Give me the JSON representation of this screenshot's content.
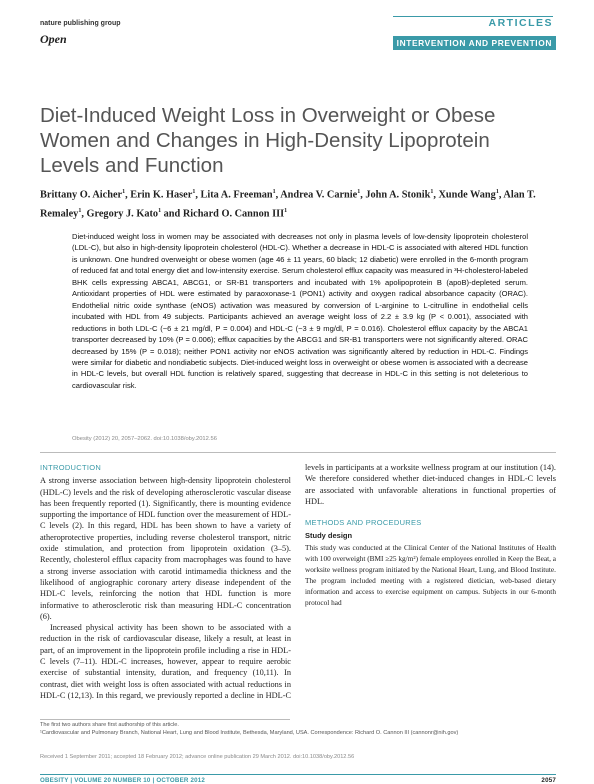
{
  "header": {
    "publisher": "nature publishing group",
    "access": "Open",
    "section": "ARTICLES",
    "subsection": "INTERVENTION AND PREVENTION"
  },
  "title": "Diet-Induced Weight Loss in Overweight or Obese Women and Changes in High-Density Lipoprotein Levels and Function",
  "authors": [
    {
      "name": "Brittany O. Aicher",
      "sup": "1",
      "sep": ", "
    },
    {
      "name": "Erin K. Haser",
      "sup": "1",
      "sep": ", "
    },
    {
      "name": "Lita A. Freeman",
      "sup": "1",
      "sep": ", "
    },
    {
      "name": "Andrea V. Carnie",
      "sup": "1",
      "sep": ", "
    },
    {
      "name": "John A. Stonik",
      "sup": "1",
      "sep": ", "
    },
    {
      "name": "Xunde Wang",
      "sup": "1",
      "sep": ", "
    },
    {
      "name": "Alan T. Remaley",
      "sup": "1",
      "sep": ", "
    },
    {
      "name": "Gregory J. Kato",
      "sup": "1",
      "sep": " and "
    },
    {
      "name": "Richard O. Cannon III",
      "sup": "1"
    }
  ],
  "abstract": "Diet-induced weight loss in women may be associated with decreases not only in plasma levels of low-density lipoprotein cholesterol (LDL-C), but also in high-density lipoprotein cholesterol (HDL-C). Whether a decrease in HDL-C is associated with altered HDL function is unknown. One hundred overweight or obese women (age 46 ± 11 years, 60 black; 12 diabetic) were enrolled in the 6-month program of reduced fat and total energy diet and low-intensity exercise. Serum cholesterol efflux capacity was measured in ³H-cholesterol-labeled BHK cells expressing ABCA1, ABCG1, or SR-B1 transporters and incubated with 1% apolipoprotein B (apoB)-depleted serum. Antioxidant properties of HDL were estimated by paraoxonase-1 (PON1) activity and oxygen radical absorbance capacity (ORAC). Endothelial nitric oxide synthase (eNOS) activation was measured by conversion of L-arginine to L-citrulline in endothelial cells incubated with HDL from 49 subjects. Participants achieved an average weight loss of 2.2 ± 3.9 kg (P < 0.001), associated with reductions in both LDL-C (−6 ± 21 mg/dl, P = 0.004) and HDL-C (−3 ± 9 mg/dl, P = 0.016). Cholesterol efflux capacity by the ABCA1 transporter decreased by 10% (P = 0.006); efflux capacities by the ABCG1 and SR-B1 transporters were not significantly altered. ORAC decreased by 15% (P = 0.018); neither PON1 activity nor eNOS activation was significantly altered by reduction in HDL-C. Findings were similar for diabetic and nondiabetic subjects. Diet-induced weight loss in overweight or obese women is associated with a decrease in HDL-C levels, but overall HDL function is relatively spared, suggesting that decrease in HDL-C in this setting is not deleterious to cardiovascular risk.",
  "citation": "Obesity (2012) 20, 2057–2062. doi:10.1038/oby.2012.56",
  "body": {
    "intro_heading": "INTRODUCTION",
    "intro_paragraphs": [
      "A strong inverse association between high-density lipoprotein cholesterol (HDL-C) levels and the risk of developing atherosclerotic vascular disease has been frequently reported (1). Significantly, there is mounting evidence supporting the importance of HDL function over the measurement of HDL-C levels (2). In this regard, HDL has been shown to have a variety of atheroprotective properties, including reverse cholesterol transport, nitric oxide stimulation, and protection from lipoprotein oxidation (3–5). Recently, cholesterol efflux capacity from macrophages was found to have a strong inverse association with carotid intimamedia thickness and the likelihood of angiographic coronary artery disease independent of the HDL-C levels, reinforcing the notion that HDL function is more informative to atherosclerotic risk than measuring HDL-C concentration (6).",
      "Increased physical activity has been shown to be associated with a reduction in the risk of cardiovascular disease, likely a result, at least in part, of an improvement in the lipoprotein profile including a rise in HDL-C levels (7–11). HDL-C increases, however, appear to require aerobic exercise of substantial intensity, duration, and frequency (10,11). In contrast, diet with weight loss is often associated with actual reductions in HDL-C (12,13). In this regard, we previously reported a decline in HDL-C levels in participants at a worksite wellness program at our institution (14). We therefore considered whether diet-induced changes in HDL-C levels are associated with unfavorable alterations in functional properties of HDL."
    ],
    "methods_heading": "METHODS AND PROCEDURES",
    "study_design_heading": "Study design",
    "study_design": "This study was conducted at the Clinical Center of the National Institutes of Health with 100 overweight (BMI ≥25 kg/m²) female employees enrolled in Keep the Beat, a worksite wellness program initiated by the National Heart, Lung, and Blood Institute. The program included meeting with a registered dietician, web-based dietary information and access to exercise equipment on campus. Subjects in our 6-month protocol had"
  },
  "footnotes": [
    "The first two authors share first authorship of this article.",
    "¹Cardiovascular and Pulmonary Branch, National Heart, Lung and Blood Institute, Bethesda, Maryland, USA. Correspondence: Richard O. Cannon III (cannonr@nih.gov)"
  ],
  "received": "Received 1 September 2011; accepted 18 February 2012; advance online publication 29 March 2012. doi:10.1038/oby.2012.56",
  "footer": {
    "journal": "OBESITY | VOLUME 20 NUMBER 10 | OCTOBER 2012",
    "page": "2057"
  }
}
